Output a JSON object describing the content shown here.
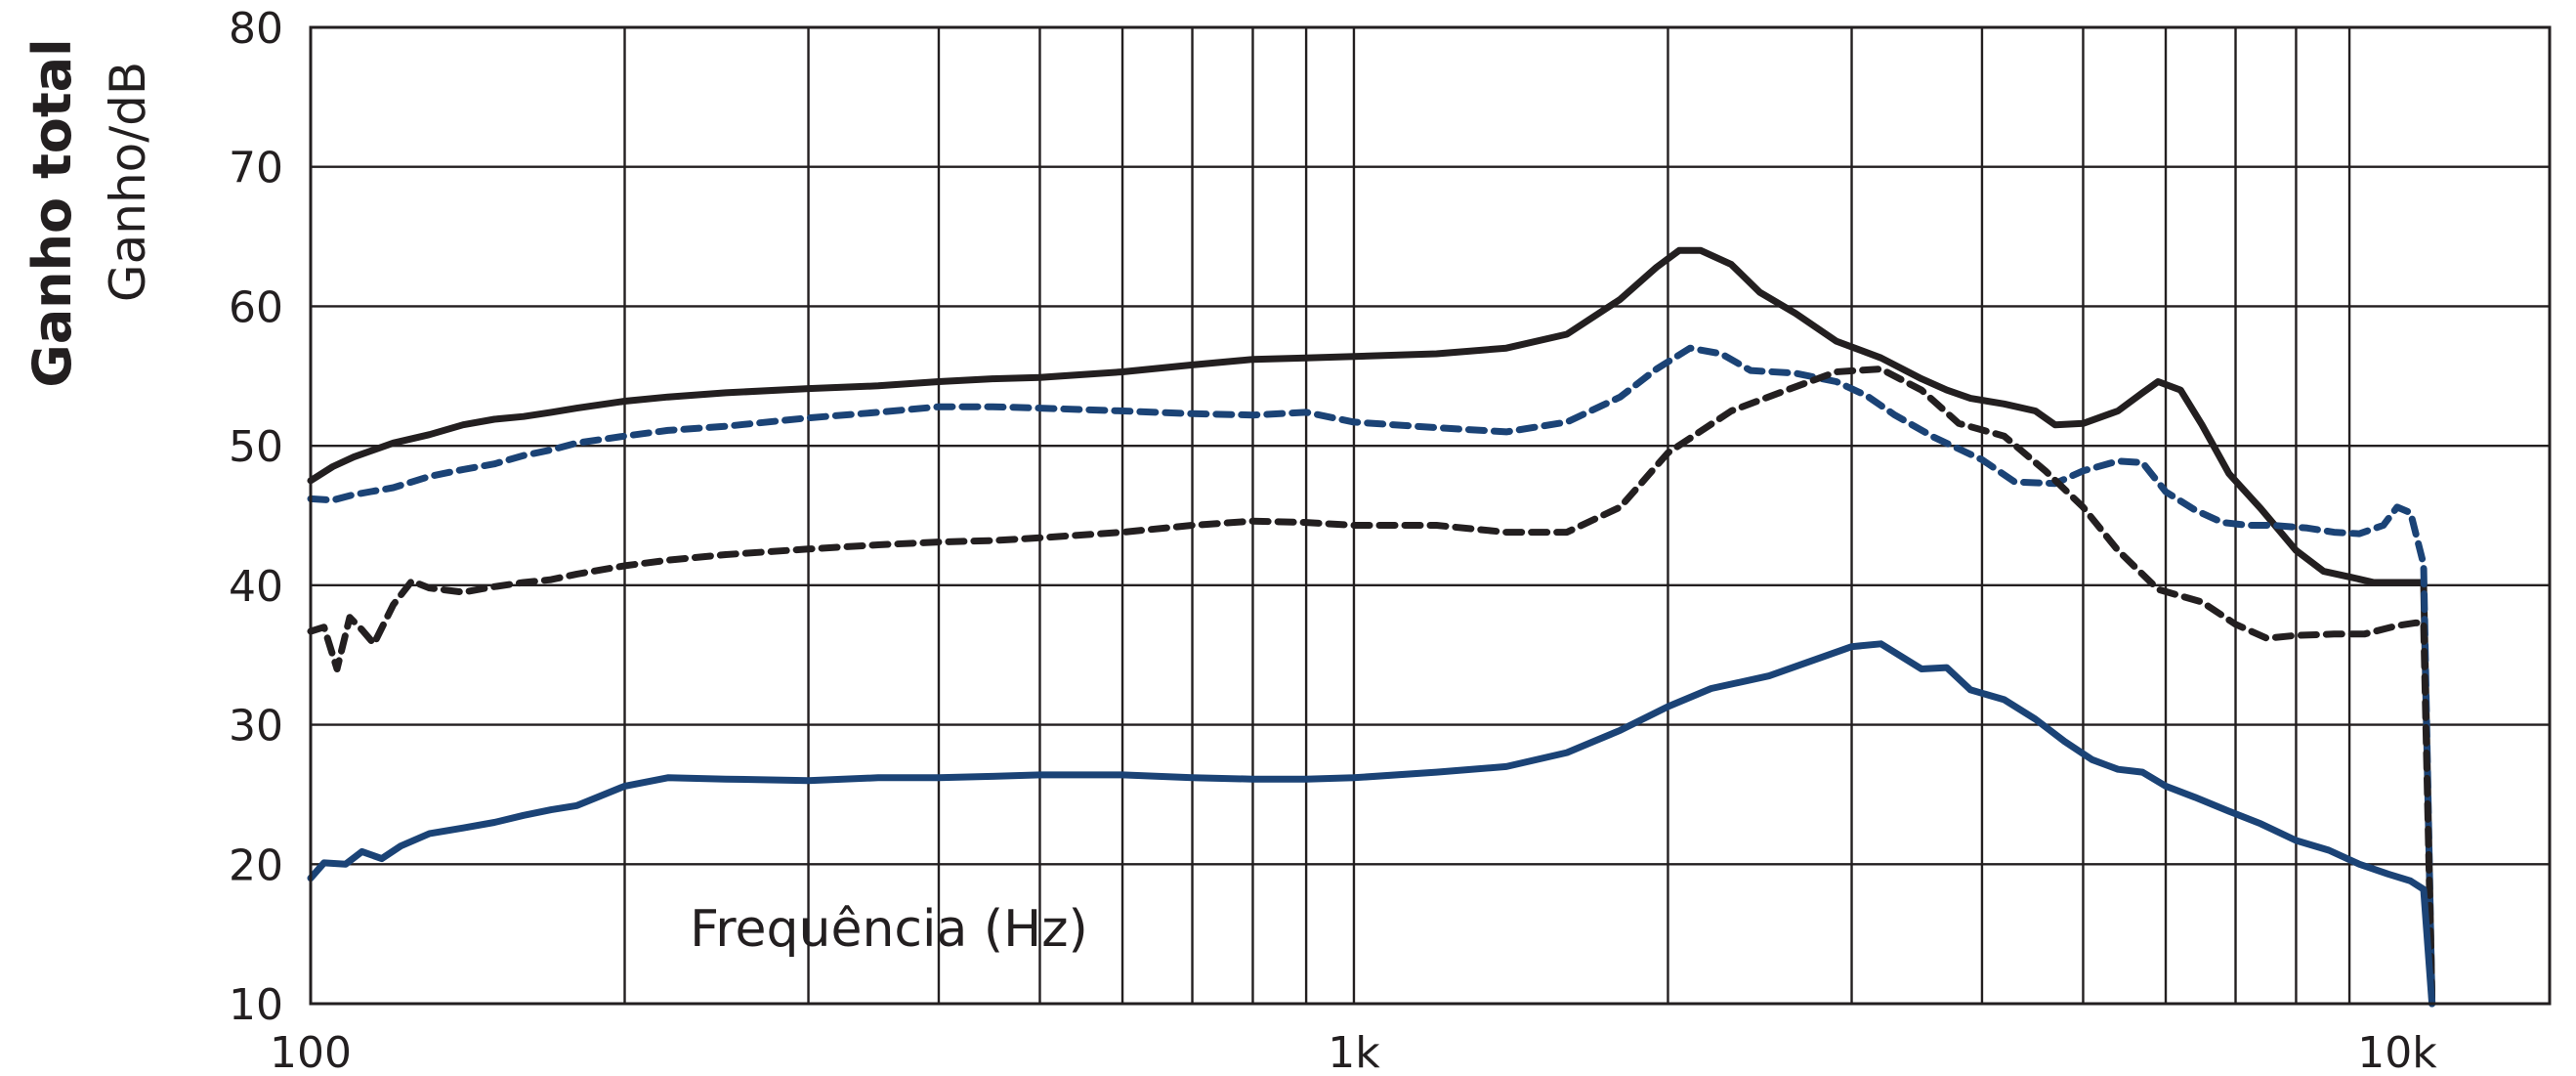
{
  "chart_data": {
    "type": "line",
    "x_scale": "log",
    "xlim": [
      100,
      14000
    ],
    "ylim": [
      10,
      80
    ],
    "ylabel_bold": "Ganho total",
    "ylabel": "Ganho/dB",
    "xlabel": "Frequência (Hz)",
    "grid": true,
    "y_ticks": [
      10,
      20,
      30,
      40,
      50,
      60,
      70,
      80
    ],
    "y_tick_labels": [
      "10",
      "20",
      "30",
      "40",
      "50",
      "60",
      "70",
      "80"
    ],
    "x_tick_labels": [
      {
        "value": 100,
        "label": "100"
      },
      {
        "value": 1000,
        "label": "1k"
      },
      {
        "value": 10000,
        "label": "10k"
      }
    ],
    "x_gridlines": [
      200,
      300,
      400,
      500,
      600,
      700,
      800,
      900,
      1000,
      2000,
      3000,
      4000,
      5000,
      6000,
      7000,
      8000,
      9000
    ],
    "series": [
      {
        "color": "#231f20",
        "dash": "solid",
        "points": [
          [
            100,
            47.5
          ],
          [
            105,
            48.5
          ],
          [
            110,
            49.2
          ],
          [
            120,
            50.2
          ],
          [
            130,
            50.8
          ],
          [
            140,
            51.5
          ],
          [
            150,
            51.9
          ],
          [
            160,
            52.1
          ],
          [
            170,
            52.4
          ],
          [
            180,
            52.7
          ],
          [
            200,
            53.2
          ],
          [
            220,
            53.5
          ],
          [
            250,
            53.8
          ],
          [
            300,
            54.1
          ],
          [
            350,
            54.3
          ],
          [
            400,
            54.6
          ],
          [
            450,
            54.8
          ],
          [
            500,
            54.9
          ],
          [
            600,
            55.3
          ],
          [
            700,
            55.8
          ],
          [
            800,
            56.2
          ],
          [
            900,
            56.3
          ],
          [
            1000,
            56.4
          ],
          [
            1200,
            56.6
          ],
          [
            1400,
            57.0
          ],
          [
            1600,
            58.0
          ],
          [
            1800,
            60.5
          ],
          [
            1950,
            62.8
          ],
          [
            2050,
            64.0
          ],
          [
            2150,
            64.0
          ],
          [
            2300,
            63.0
          ],
          [
            2450,
            61.0
          ],
          [
            2650,
            59.5
          ],
          [
            2900,
            57.5
          ],
          [
            3200,
            56.3
          ],
          [
            3500,
            54.8
          ],
          [
            3700,
            54.0
          ],
          [
            3900,
            53.4
          ],
          [
            4200,
            53.0
          ],
          [
            4500,
            52.5
          ],
          [
            4700,
            51.5
          ],
          [
            5000,
            51.6
          ],
          [
            5400,
            52.5
          ],
          [
            5700,
            53.8
          ],
          [
            5900,
            54.6
          ],
          [
            6200,
            54.0
          ],
          [
            6500,
            51.5
          ],
          [
            6900,
            48.0
          ],
          [
            7400,
            45.5
          ],
          [
            8000,
            42.5
          ],
          [
            8500,
            41.0
          ],
          [
            9000,
            40.6
          ],
          [
            9500,
            40.2
          ],
          [
            10200,
            40.2
          ],
          [
            10600,
            40.2
          ],
          [
            10800,
            10.0
          ]
        ]
      },
      {
        "color": "#1b4376",
        "dash": "dashed",
        "points": [
          [
            100,
            46.2
          ],
          [
            105,
            46.1
          ],
          [
            110,
            46.5
          ],
          [
            120,
            47.0
          ],
          [
            130,
            47.8
          ],
          [
            140,
            48.3
          ],
          [
            150,
            48.7
          ],
          [
            160,
            49.3
          ],
          [
            170,
            49.7
          ],
          [
            180,
            50.2
          ],
          [
            200,
            50.7
          ],
          [
            220,
            51.1
          ],
          [
            250,
            51.4
          ],
          [
            300,
            52.0
          ],
          [
            350,
            52.4
          ],
          [
            400,
            52.8
          ],
          [
            450,
            52.8
          ],
          [
            500,
            52.7
          ],
          [
            600,
            52.5
          ],
          [
            700,
            52.3
          ],
          [
            800,
            52.2
          ],
          [
            900,
            52.4
          ],
          [
            1000,
            51.7
          ],
          [
            1200,
            51.3
          ],
          [
            1400,
            51.0
          ],
          [
            1600,
            51.7
          ],
          [
            1800,
            53.5
          ],
          [
            1950,
            55.5
          ],
          [
            2100,
            57.0
          ],
          [
            2250,
            56.6
          ],
          [
            2400,
            55.4
          ],
          [
            2650,
            55.2
          ],
          [
            2900,
            54.6
          ],
          [
            3100,
            53.6
          ],
          [
            3300,
            52.2
          ],
          [
            3600,
            50.6
          ],
          [
            4000,
            49.0
          ],
          [
            4300,
            47.4
          ],
          [
            4700,
            47.3
          ],
          [
            5000,
            48.2
          ],
          [
            5400,
            48.9
          ],
          [
            5700,
            48.8
          ],
          [
            6000,
            46.7
          ],
          [
            6400,
            45.4
          ],
          [
            6800,
            44.5
          ],
          [
            7200,
            44.3
          ],
          [
            7600,
            44.3
          ],
          [
            8200,
            44.1
          ],
          [
            8700,
            43.8
          ],
          [
            9200,
            43.7
          ],
          [
            9700,
            44.3
          ],
          [
            10000,
            45.6
          ],
          [
            10300,
            45.2
          ],
          [
            10600,
            41.5
          ],
          [
            10800,
            10.0
          ]
        ]
      },
      {
        "color": "#231f20",
        "dash": "dashed",
        "points": [
          [
            100,
            36.7
          ],
          [
            103,
            37.0
          ],
          [
            106,
            34.0
          ],
          [
            109,
            37.7
          ],
          [
            112,
            36.8
          ],
          [
            115,
            35.8
          ],
          [
            120,
            38.6
          ],
          [
            125,
            40.3
          ],
          [
            130,
            39.8
          ],
          [
            140,
            39.5
          ],
          [
            150,
            39.9
          ],
          [
            160,
            40.2
          ],
          [
            170,
            40.4
          ],
          [
            180,
            40.8
          ],
          [
            200,
            41.4
          ],
          [
            220,
            41.8
          ],
          [
            250,
            42.2
          ],
          [
            300,
            42.6
          ],
          [
            350,
            42.9
          ],
          [
            400,
            43.1
          ],
          [
            450,
            43.2
          ],
          [
            500,
            43.4
          ],
          [
            600,
            43.8
          ],
          [
            700,
            44.3
          ],
          [
            800,
            44.6
          ],
          [
            900,
            44.5
          ],
          [
            1000,
            44.3
          ],
          [
            1200,
            44.3
          ],
          [
            1400,
            43.8
          ],
          [
            1600,
            43.8
          ],
          [
            1800,
            45.6
          ],
          [
            2000,
            49.5
          ],
          [
            2300,
            52.5
          ],
          [
            2600,
            54.0
          ],
          [
            2900,
            55.3
          ],
          [
            3200,
            55.5
          ],
          [
            3500,
            54.0
          ],
          [
            3800,
            51.6
          ],
          [
            4200,
            50.7
          ],
          [
            4600,
            48.2
          ],
          [
            5000,
            45.6
          ],
          [
            5400,
            42.5
          ],
          [
            5900,
            39.7
          ],
          [
            6500,
            38.8
          ],
          [
            7000,
            37.2
          ],
          [
            7500,
            36.2
          ],
          [
            8000,
            36.4
          ],
          [
            8700,
            36.5
          ],
          [
            9300,
            36.5
          ],
          [
            10000,
            37.1
          ],
          [
            10400,
            37.3
          ],
          [
            10600,
            37.3
          ],
          [
            10800,
            10.0
          ]
        ]
      },
      {
        "color": "#1b4376",
        "dash": "solid",
        "points": [
          [
            100,
            19.0
          ],
          [
            103,
            20.1
          ],
          [
            108,
            20.0
          ],
          [
            112,
            20.9
          ],
          [
            117,
            20.4
          ],
          [
            122,
            21.3
          ],
          [
            130,
            22.2
          ],
          [
            140,
            22.6
          ],
          [
            150,
            23.0
          ],
          [
            160,
            23.5
          ],
          [
            170,
            23.9
          ],
          [
            180,
            24.2
          ],
          [
            200,
            25.6
          ],
          [
            220,
            26.2
          ],
          [
            250,
            26.1
          ],
          [
            300,
            26.0
          ],
          [
            350,
            26.2
          ],
          [
            400,
            26.2
          ],
          [
            450,
            26.3
          ],
          [
            500,
            26.4
          ],
          [
            600,
            26.4
          ],
          [
            700,
            26.2
          ],
          [
            800,
            26.1
          ],
          [
            900,
            26.1
          ],
          [
            1000,
            26.2
          ],
          [
            1200,
            26.6
          ],
          [
            1400,
            27.0
          ],
          [
            1600,
            28.0
          ],
          [
            1800,
            29.6
          ],
          [
            2000,
            31.3
          ],
          [
            2200,
            32.6
          ],
          [
            2500,
            33.5
          ],
          [
            2750,
            34.6
          ],
          [
            3000,
            35.6
          ],
          [
            3200,
            35.8
          ],
          [
            3500,
            34.0
          ],
          [
            3700,
            34.1
          ],
          [
            3900,
            32.5
          ],
          [
            4200,
            31.8
          ],
          [
            4500,
            30.4
          ],
          [
            4800,
            28.8
          ],
          [
            5100,
            27.5
          ],
          [
            5400,
            26.8
          ],
          [
            5700,
            26.6
          ],
          [
            6000,
            25.6
          ],
          [
            6400,
            24.8
          ],
          [
            6900,
            23.8
          ],
          [
            7400,
            22.9
          ],
          [
            8000,
            21.7
          ],
          [
            8600,
            21.0
          ],
          [
            9200,
            20.0
          ],
          [
            9800,
            19.3
          ],
          [
            10300,
            18.8
          ],
          [
            10600,
            18.2
          ],
          [
            10800,
            10.0
          ]
        ]
      }
    ]
  }
}
